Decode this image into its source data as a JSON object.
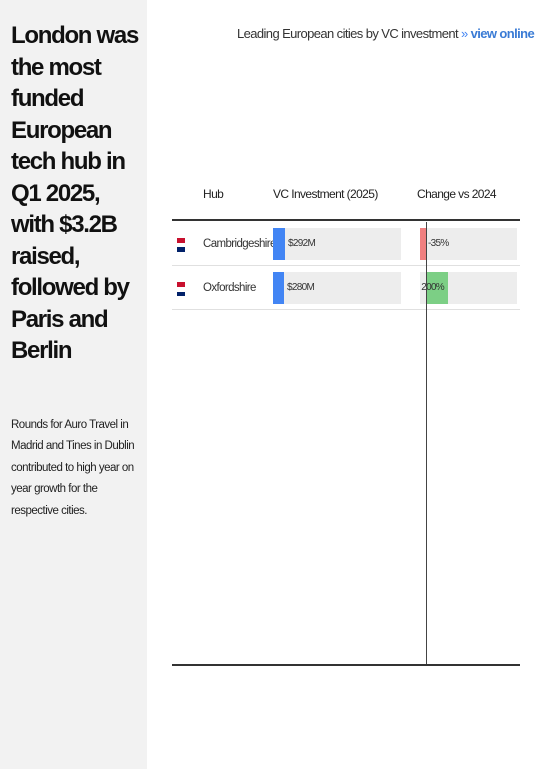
{
  "headline": "London was the most funded European tech hub in Q1 2025, with $3.2B raised, followed by Paris and Berlin",
  "note": "Rounds for Auro Travel in Madrid and Tines in Dublin contributed to high year on year growth for the respective cities.",
  "top_title": {
    "text": "Leading European cities by VC investment",
    "separator": "»",
    "link": "view online"
  },
  "colors": {
    "investment_bar": "#4285f4",
    "change_positive": "#7ccf85",
    "change_negative": "#f07f7f",
    "panel_bg": "#f2f2f2",
    "track_bg": "#ededed"
  },
  "chart_data": {
    "type": "table",
    "columns": [
      "Hub",
      "VC Investment (2025)",
      "Change vs 2024"
    ],
    "investment_unit": "USD millions",
    "change_unit": "percent",
    "investment_max": 3200,
    "change_range": [
      -35,
      824
    ],
    "rows": [
      {
        "flag": "uk-flag-icon",
        "hub": "Cambridgeshire",
        "investment": 292,
        "investment_label": "$292M",
        "change": -35,
        "change_label": "-35%"
      },
      {
        "flag": "uk-flag-icon",
        "hub": "Oxfordshire",
        "investment": 280,
        "investment_label": "$280M",
        "change": 200,
        "change_label": "200%"
      }
    ]
  }
}
